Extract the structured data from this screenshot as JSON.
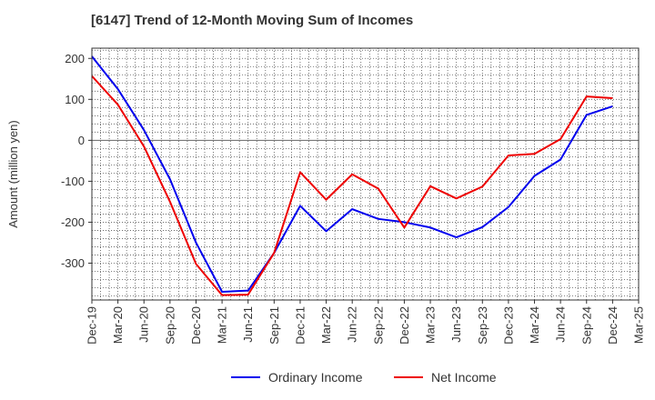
{
  "chart_data": {
    "type": "line",
    "title": "[6147]  Trend of 12-Month Moving Sum of Incomes",
    "xlabel": "",
    "ylabel": "Amount (million yen)",
    "ylim": [
      -390,
      225
    ],
    "yticks": [
      200,
      100,
      0,
      -100,
      -200,
      -300
    ],
    "grid": true,
    "legend_position": "bottom",
    "tick_labels": [
      "Dec-19",
      "Mar-20",
      "Jun-20",
      "Sep-20",
      "Dec-20",
      "Mar-21",
      "Jun-21",
      "Sep-21",
      "Dec-21",
      "Mar-22",
      "Jun-22",
      "Sep-22",
      "Dec-22",
      "Mar-23",
      "Jun-23",
      "Sep-23",
      "Dec-23",
      "Mar-24",
      "Jun-24",
      "Sep-24",
      "Dec-24",
      "Mar-25"
    ],
    "categories": [
      "Dec-19",
      "Mar-20",
      "Jun-20",
      "Sep-20",
      "Dec-20",
      "Mar-21",
      "Jun-21",
      "Sep-21",
      "Dec-21",
      "Mar-22",
      "Jun-22",
      "Sep-22",
      "Dec-22",
      "Mar-23",
      "Jun-23",
      "Sep-23",
      "Dec-23",
      "Mar-24",
      "Jun-24",
      "Sep-24",
      "Dec-24"
    ],
    "series": [
      {
        "name": "Ordinary Income",
        "color": "#0000ee",
        "values": [
          205,
          125,
          25,
          -95,
          -250,
          -370,
          -367,
          -275,
          -160,
          -222,
          -168,
          -192,
          -200,
          -213,
          -237,
          -212,
          -163,
          -87,
          -47,
          62,
          83
        ]
      },
      {
        "name": "Net Income",
        "color": "#ee0000",
        "values": [
          157,
          87,
          -15,
          -150,
          -302,
          -378,
          -377,
          -275,
          -78,
          -145,
          -83,
          -118,
          -213,
          -112,
          -142,
          -113,
          -37,
          -33,
          3,
          107,
          103
        ]
      }
    ]
  }
}
